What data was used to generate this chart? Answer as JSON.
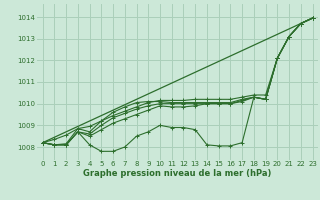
{
  "xlabel": "Graphe pression niveau de la mer (hPa)",
  "bg_color": "#cce8d8",
  "grid_color": "#aacfba",
  "line_color": "#2d6e2d",
  "ylim": [
    1007.4,
    1014.6
  ],
  "xlim": [
    -0.5,
    23.5
  ],
  "yticks": [
    1008,
    1009,
    1010,
    1011,
    1012,
    1013,
    1014
  ],
  "xticks": [
    0,
    1,
    2,
    3,
    4,
    5,
    6,
    7,
    8,
    9,
    10,
    11,
    12,
    13,
    14,
    15,
    16,
    17,
    18,
    19,
    20,
    21,
    22,
    23
  ],
  "series": [
    [
      1008.2,
      1008.1,
      1008.1,
      1008.7,
      1008.1,
      1007.8,
      1007.8,
      1008.0,
      1008.5,
      1008.7,
      1009.0,
      1008.9,
      1008.9,
      1008.8,
      1008.1,
      1008.05,
      1008.05,
      1008.2,
      1010.3,
      1010.2,
      1012.1,
      1013.1,
      1013.7,
      1013.95
    ],
    [
      1008.2,
      1008.1,
      1008.1,
      1008.7,
      1008.5,
      1008.8,
      1009.1,
      1009.3,
      1009.5,
      1009.7,
      1009.9,
      1009.85,
      1009.85,
      1009.9,
      1010.0,
      1010.0,
      1010.0,
      1010.1,
      1010.3,
      1010.2,
      1012.1,
      1013.1,
      1013.7,
      1013.95
    ],
    [
      1008.2,
      1008.1,
      1008.1,
      1008.7,
      1008.6,
      1009.0,
      1009.35,
      1009.55,
      1009.75,
      1009.9,
      1010.0,
      1010.0,
      1010.0,
      1010.0,
      1010.0,
      1010.0,
      1010.0,
      1010.15,
      1010.3,
      1010.2,
      1012.1,
      1013.1,
      1013.7,
      1013.95
    ],
    [
      1008.2,
      1008.1,
      1008.15,
      1008.85,
      1008.7,
      1009.2,
      1009.6,
      1009.85,
      1010.05,
      1010.1,
      1010.1,
      1010.05,
      1010.05,
      1010.05,
      1010.05,
      1010.05,
      1010.05,
      1010.2,
      1010.3,
      1010.2,
      1012.1,
      1013.1,
      1013.7,
      1013.95
    ],
    [
      1008.2,
      1008.35,
      1008.55,
      1008.85,
      1008.95,
      1009.2,
      1009.45,
      1009.65,
      1009.85,
      1010.05,
      1010.15,
      1010.15,
      1010.15,
      1010.2,
      1010.2,
      1010.2,
      1010.2,
      1010.3,
      1010.4,
      1010.4,
      1012.1,
      1013.1,
      1013.7,
      1013.95
    ]
  ],
  "straight_line": [
    1008.2,
    1013.95
  ]
}
